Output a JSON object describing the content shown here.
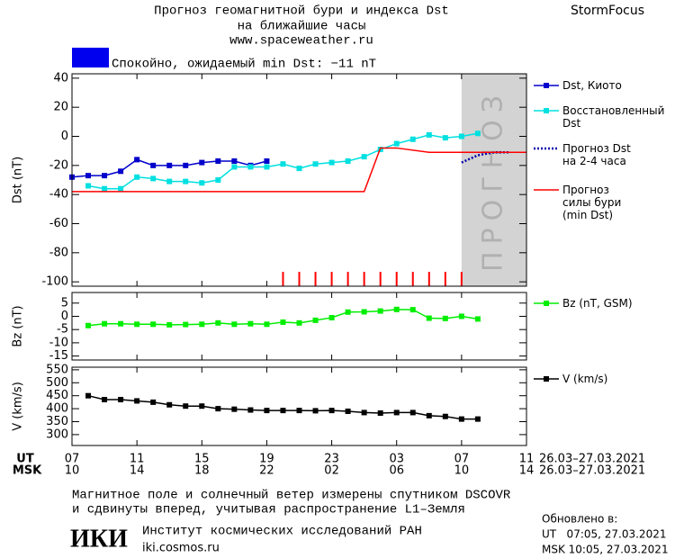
{
  "header": {
    "title": "Прогноз геомагнитной бури и индекса Dst",
    "subtitle": "на ближайшие часы",
    "url": "www.spaceweather.ru",
    "brand": "StormFocus",
    "status_color": "#0000ee",
    "status": "Спокойно, ожидаемый min Dst: −11 nT"
  },
  "time_axis": {
    "xlim": [
      7,
      35
    ],
    "ut_label": "UT",
    "msk_label": "MSK",
    "xticks": [
      {
        "value": 7,
        "label": "07"
      },
      11,
      15,
      19,
      23,
      {
        "value": 27,
        "label": "03"
      },
      {
        "value": 31,
        "label": "07"
      },
      {
        "value": 35,
        "label": "11"
      }
    ],
    "msk_ticks": [
      {
        "value": 7,
        "label": "10"
      },
      {
        "value": 11,
        "label": "14"
      },
      {
        "value": 15,
        "label": "18"
      },
      {
        "value": 19,
        "label": "22"
      },
      {
        "value": 23,
        "label": "02"
      },
      {
        "value": 27,
        "label": "06"
      },
      {
        "value": 31,
        "label": "10"
      },
      {
        "value": 35,
        "label": "14"
      }
    ],
    "ut_dates": "26.03–27.03.2021",
    "msk_dates": "26.03–27.03.2021"
  },
  "chart_data": [
    {
      "type": "line",
      "ylabel": "Dst (nT)",
      "ylim": [
        -103,
        43
      ],
      "yticks": [
        -100,
        -80,
        -60,
        -40,
        -20,
        0,
        20,
        40
      ],
      "forecast_region": [
        31,
        35
      ],
      "forecast_color": "#d3d3d3",
      "forecast_label": "ПРОГНОЗ",
      "storm_markers": [
        20,
        21,
        22,
        23,
        24,
        25,
        26,
        27,
        28,
        29,
        30,
        31
      ],
      "storm_marker_color": "#ff0000",
      "series": [
        {
          "name": "Dst, Киото",
          "color": "#0000cc",
          "marker": "square",
          "x": [
            7,
            8,
            9,
            10,
            11,
            12,
            13,
            14,
            15,
            16,
            17,
            18,
            19
          ],
          "values": [
            -28,
            -27,
            -27,
            -24,
            -16,
            -20,
            -20,
            -20,
            -18,
            -17,
            -17,
            -20,
            -17
          ]
        },
        {
          "name": "Восстановленный\nDst",
          "color": "#00e0e0",
          "marker": "square",
          "x": [
            8,
            9,
            10,
            11,
            12,
            13,
            14,
            15,
            16,
            17,
            18,
            19,
            20,
            21,
            22,
            23,
            24,
            25,
            26,
            27,
            28,
            29,
            30,
            31,
            32
          ],
          "values": [
            -34,
            -36,
            -36,
            -28,
            -29,
            -31,
            -31,
            -32,
            -30,
            -21,
            -21,
            -21,
            -19,
            -22,
            -19,
            -18,
            -17,
            -14,
            -9,
            -5,
            -2,
            1,
            -1,
            0,
            2
          ]
        },
        {
          "name": "Прогноз Dst\nна 2-4 часа",
          "color": "#0000aa",
          "dash": "dotted",
          "x": [
            31,
            32,
            33,
            34
          ],
          "values": [
            -18,
            -13,
            -11,
            -11
          ]
        },
        {
          "name": "Прогноз\nсилы бури\n(min Dst)",
          "color": "#ff0000",
          "x": [
            7,
            25,
            26,
            27,
            29,
            35
          ],
          "values": [
            -38,
            -38,
            -8,
            -8,
            -11,
            -11
          ]
        }
      ]
    },
    {
      "type": "line",
      "ylabel": "Bz (nT)",
      "ylim": [
        -16.5,
        9
      ],
      "yticks": [
        -15,
        -10,
        -5,
        0,
        5
      ],
      "series": [
        {
          "name": "Bz (nT, GSM)",
          "color": "#00ee00",
          "marker": "square",
          "x": [
            8,
            9,
            10,
            11,
            12,
            13,
            14,
            15,
            16,
            17,
            18,
            19,
            20,
            21,
            22,
            23,
            24,
            25,
            26,
            27,
            28,
            29,
            30,
            31,
            32
          ],
          "values": [
            -3.5,
            -2.8,
            -2.8,
            -3,
            -3,
            -3.2,
            -3.1,
            -3,
            -2.5,
            -3,
            -2.8,
            -3,
            -2.2,
            -2.5,
            -1.5,
            -0.5,
            1.6,
            1.7,
            2,
            2.6,
            2.5,
            -0.7,
            -0.8,
            0,
            -1
          ]
        }
      ]
    },
    {
      "type": "line",
      "ylabel": "V (km/s)",
      "ylim": [
        258,
        560
      ],
      "yticks": [
        300,
        350,
        400,
        450,
        500,
        550
      ],
      "series": [
        {
          "name": "V (km/s)",
          "color": "#000000",
          "marker": "square",
          "x": [
            8,
            9,
            10,
            11,
            12,
            13,
            14,
            15,
            16,
            17,
            18,
            19,
            20,
            21,
            22,
            23,
            24,
            25,
            26,
            27,
            28,
            29,
            30,
            31,
            32
          ],
          "values": [
            450,
            435,
            435,
            430,
            425,
            415,
            410,
            410,
            400,
            398,
            395,
            393,
            393,
            393,
            392,
            393,
            390,
            385,
            383,
            385,
            385,
            373,
            370,
            360,
            360
          ]
        }
      ]
    }
  ],
  "footer": {
    "note_1": "Магнитное поле и солнечный ветер измерены спутником DSCOVR",
    "note_2": "и сдвинуты вперед, учитывая распространение L1–Земля",
    "logo": "ИКИ",
    "institute": "Институт космических исследований РАН",
    "site": "iki.cosmos.ru",
    "updated": "Обновлено в:",
    "updated_ut": "UT   07:05, 27.03.2021",
    "updated_msk": "MSK 10:05, 27.03.2021"
  }
}
